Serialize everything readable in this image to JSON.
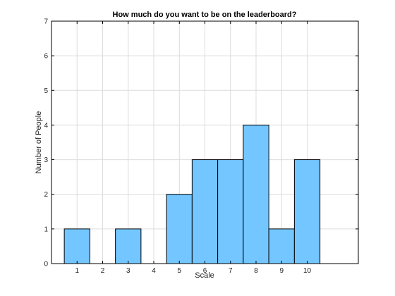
{
  "chart_data": {
    "type": "bar",
    "title": "How much do you want to be on the leaderboard?",
    "xlabel": "Scale",
    "ylabel": "Number of People",
    "categories": [
      1,
      2,
      3,
      4,
      5,
      6,
      7,
      8,
      9,
      10
    ],
    "values": [
      1,
      0,
      1,
      0,
      2,
      3,
      3,
      4,
      1,
      3
    ],
    "xlim": [
      0,
      12
    ],
    "ylim": [
      0,
      7
    ],
    "yticks": [
      0,
      1,
      2,
      3,
      4,
      5,
      6,
      7
    ],
    "xticks": [
      1,
      2,
      3,
      4,
      5,
      6,
      7,
      8,
      9,
      10
    ],
    "grid": true,
    "bar_color": "#73c6ff"
  }
}
